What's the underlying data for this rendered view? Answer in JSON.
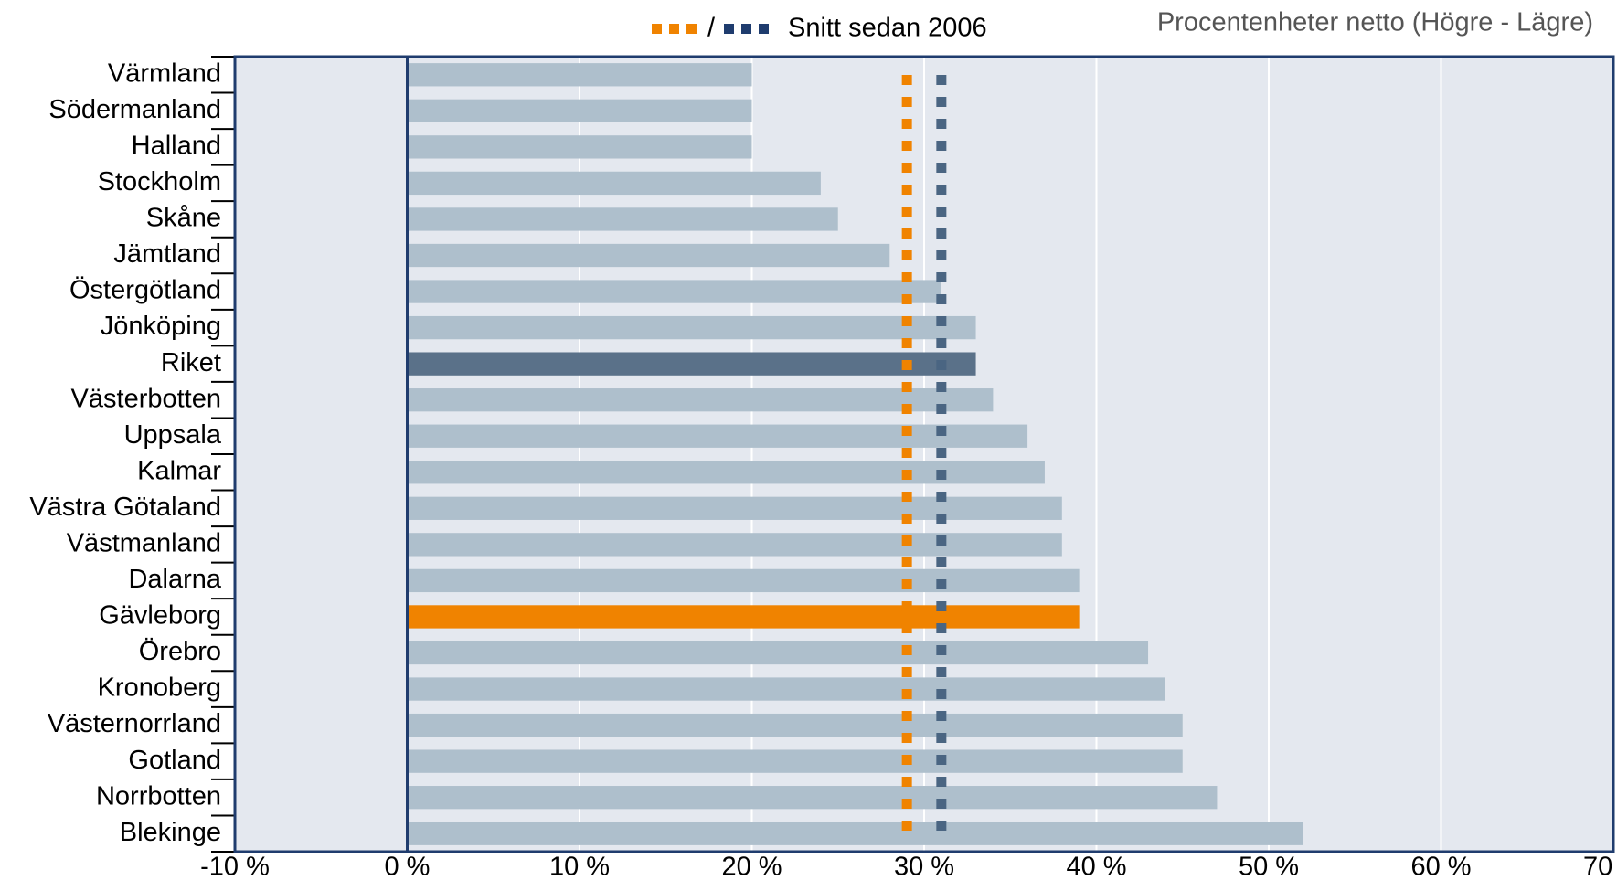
{
  "chart_data": {
    "type": "bar",
    "orientation": "horizontal",
    "subtitle": "Procentenheter netto (Högre - Lägre)",
    "categories": [
      "Värmland",
      "Södermanland",
      "Halland",
      "Stockholm",
      "Skåne",
      "Jämtland",
      "Östergötland",
      "Jönköping",
      "Riket",
      "Västerbotten",
      "Uppsala",
      "Kalmar",
      "Västra Götaland",
      "Västmanland",
      "Dalarna",
      "Gävleborg",
      "Örebro",
      "Kronoberg",
      "Västernorrland",
      "Gotland",
      "Norrbotten",
      "Blekinge"
    ],
    "values": [
      20,
      20,
      20,
      24,
      25,
      28,
      31,
      33,
      33,
      34,
      36,
      37,
      38,
      38,
      39,
      39,
      43,
      44,
      45,
      45,
      47,
      52
    ],
    "bar_colors": [
      "#aebfcc",
      "#aebfcc",
      "#aebfcc",
      "#aebfcc",
      "#aebfcc",
      "#aebfcc",
      "#aebfcc",
      "#aebfcc",
      "#5a7189",
      "#aebfcc",
      "#aebfcc",
      "#aebfcc",
      "#aebfcc",
      "#aebfcc",
      "#aebfcc",
      "#f08300",
      "#aebfcc",
      "#aebfcc",
      "#aebfcc",
      "#aebfcc",
      "#aebfcc",
      "#aebfcc"
    ],
    "reference_lines": {
      "name": "Snitt sedan 2006",
      "separator": "/",
      "lines": [
        {
          "value": 29,
          "color": "#f08300"
        },
        {
          "value": 31,
          "color": "#4a6582"
        }
      ]
    },
    "xlim": [
      -10,
      70
    ],
    "xticks": [
      {
        "value": -10,
        "label": "-10 %"
      },
      {
        "value": 0,
        "label": "0 %"
      },
      {
        "value": 10,
        "label": "10 %"
      },
      {
        "value": 20,
        "label": "20 %"
      },
      {
        "value": 30,
        "label": "30 %"
      },
      {
        "value": 40,
        "label": "40 %"
      },
      {
        "value": 50,
        "label": "50 %"
      },
      {
        "value": 60,
        "label": "60 %"
      },
      {
        "value": 70,
        "label": "70 %"
      }
    ],
    "grid": true
  }
}
